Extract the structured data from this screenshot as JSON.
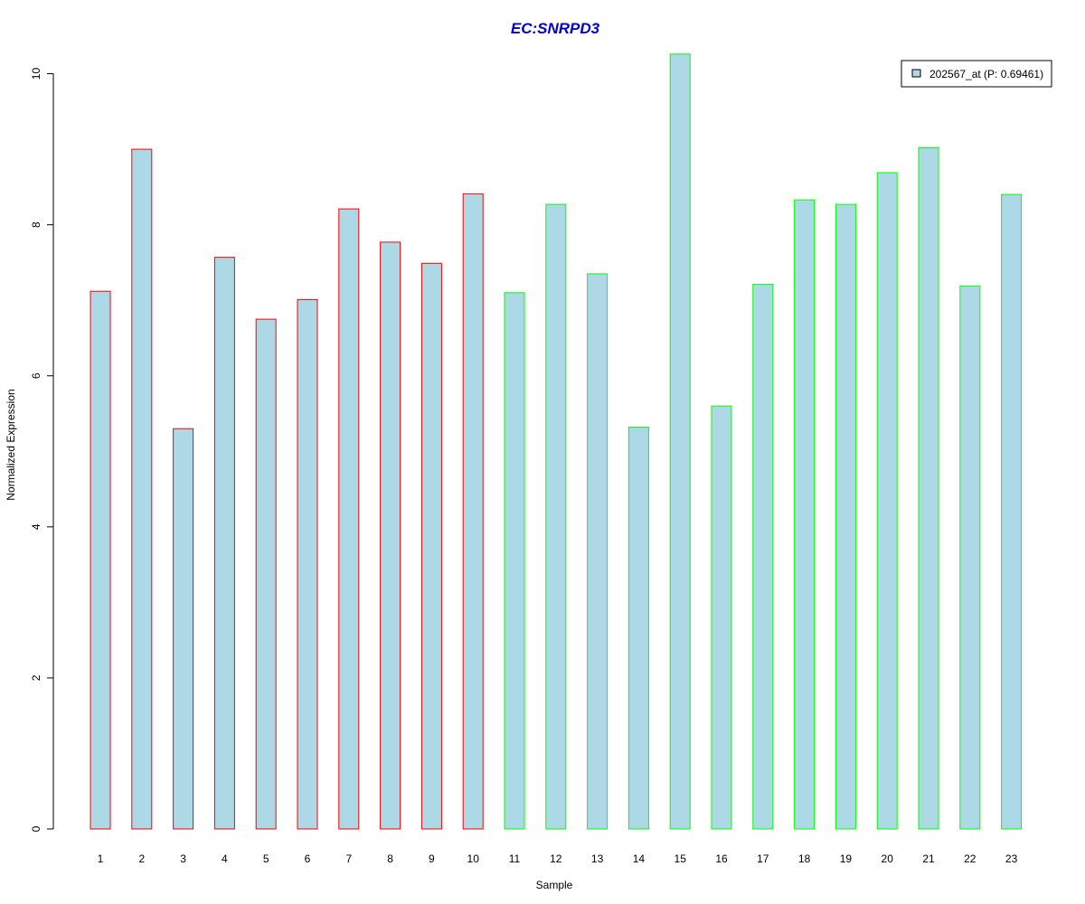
{
  "chart_data": {
    "type": "bar",
    "title": "EC:SNRPD3",
    "xlabel": "Sample",
    "ylabel": "Normalized Expression",
    "ylim": [
      0,
      10.27
    ],
    "yticks": [
      0,
      2,
      4,
      6,
      8,
      10
    ],
    "grid": false,
    "legend_position": "top-right",
    "categories": [
      "1",
      "2",
      "3",
      "4",
      "5",
      "6",
      "7",
      "8",
      "9",
      "10",
      "11",
      "12",
      "13",
      "14",
      "15",
      "16",
      "17",
      "18",
      "19",
      "20",
      "21",
      "22",
      "23"
    ],
    "series": [
      {
        "name": "202567_at (P: 0.69461)",
        "values": [
          7.12,
          9.0,
          5.3,
          7.57,
          6.75,
          7.01,
          8.21,
          7.77,
          7.49,
          8.41,
          7.1,
          8.27,
          7.35,
          5.32,
          10.26,
          5.6,
          7.21,
          8.33,
          8.27,
          8.69,
          9.02,
          7.19,
          8.4
        ],
        "groups": [
          "a",
          "a",
          "a",
          "a",
          "a",
          "a",
          "a",
          "a",
          "a",
          "a",
          "b",
          "b",
          "b",
          "b",
          "b",
          "b",
          "b",
          "b",
          "b",
          "b",
          "b",
          "b",
          "b"
        ]
      }
    ],
    "colors": {
      "fill": "#add8e6",
      "border_group_a": "#ff0000",
      "border_group_b": "#00ff00",
      "title": "#0000cd",
      "axis": "#000000"
    }
  }
}
